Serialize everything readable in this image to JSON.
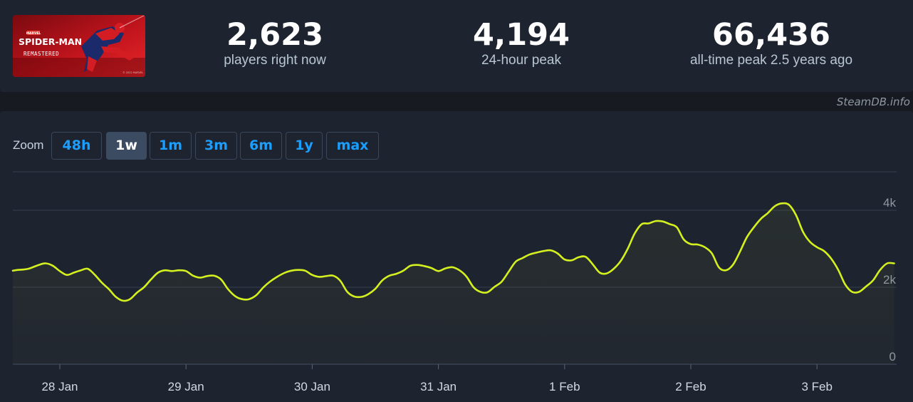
{
  "game": {
    "title_line1": "SPIDER-MAN",
    "title_line2": "REMASTERED",
    "publisher_mark": "MARVEL",
    "copyright": "© 2022 MARVEL"
  },
  "stats": [
    {
      "value": "2,623",
      "label": "players right now"
    },
    {
      "value": "4,194",
      "label": "24-hour peak"
    },
    {
      "value": "66,436",
      "label": "all-time peak 2.5 years ago"
    }
  ],
  "credit": "SteamDB.info",
  "zoom": {
    "label": "Zoom",
    "options": [
      "48h",
      "1w",
      "1m",
      "3m",
      "6m",
      "1y",
      "max"
    ],
    "selected": "1w"
  },
  "colors": {
    "line": "#d4f01f",
    "active_zoom_bg": "#3b4b62",
    "zoom_text": "#1a9fff"
  },
  "chart_data": {
    "type": "area",
    "title": "",
    "xlabel": "",
    "ylabel": "",
    "ylim": [
      0,
      5000
    ],
    "y_ticks": [
      {
        "value": 0,
        "label": "0"
      },
      {
        "value": 2000,
        "label": "2k"
      },
      {
        "value": 4000,
        "label": "4k"
      }
    ],
    "x_ticks": [
      "28 Jan",
      "29 Jan",
      "30 Jan",
      "31 Jan",
      "1 Feb",
      "2 Feb",
      "3 Feb"
    ],
    "x_start": "27 Jan 14:00",
    "x_end": "3 Feb 15:00",
    "grid": true,
    "series": [
      {
        "values": [
          [
            -0.378,
            2430
          ],
          [
            -0.333,
            2450
          ],
          [
            -0.25,
            2480
          ],
          [
            -0.167,
            2580
          ],
          [
            -0.111,
            2620
          ],
          [
            -0.056,
            2560
          ],
          [
            0.0,
            2420
          ],
          [
            0.056,
            2320
          ],
          [
            0.111,
            2380
          ],
          [
            0.167,
            2440
          ],
          [
            0.222,
            2480
          ],
          [
            0.278,
            2320
          ],
          [
            0.333,
            2120
          ],
          [
            0.389,
            1950
          ],
          [
            0.444,
            1750
          ],
          [
            0.5,
            1650
          ],
          [
            0.556,
            1690
          ],
          [
            0.611,
            1860
          ],
          [
            0.667,
            2000
          ],
          [
            0.722,
            2200
          ],
          [
            0.778,
            2380
          ],
          [
            0.833,
            2440
          ],
          [
            0.889,
            2420
          ],
          [
            0.944,
            2440
          ],
          [
            1.0,
            2420
          ],
          [
            1.056,
            2300
          ],
          [
            1.111,
            2250
          ],
          [
            1.167,
            2290
          ],
          [
            1.222,
            2300
          ],
          [
            1.278,
            2200
          ],
          [
            1.333,
            1950
          ],
          [
            1.389,
            1770
          ],
          [
            1.444,
            1690
          ],
          [
            1.5,
            1690
          ],
          [
            1.556,
            1790
          ],
          [
            1.611,
            1990
          ],
          [
            1.667,
            2150
          ],
          [
            1.722,
            2270
          ],
          [
            1.778,
            2370
          ],
          [
            1.833,
            2430
          ],
          [
            1.889,
            2450
          ],
          [
            1.944,
            2430
          ],
          [
            2.0,
            2320
          ],
          [
            2.056,
            2270
          ],
          [
            2.111,
            2290
          ],
          [
            2.167,
            2300
          ],
          [
            2.222,
            2170
          ],
          [
            2.278,
            1880
          ],
          [
            2.333,
            1760
          ],
          [
            2.389,
            1750
          ],
          [
            2.444,
            1820
          ],
          [
            2.5,
            1960
          ],
          [
            2.556,
            2180
          ],
          [
            2.611,
            2300
          ],
          [
            2.667,
            2350
          ],
          [
            2.722,
            2430
          ],
          [
            2.778,
            2560
          ],
          [
            2.833,
            2580
          ],
          [
            2.889,
            2550
          ],
          [
            2.944,
            2500
          ],
          [
            3.0,
            2420
          ],
          [
            3.056,
            2490
          ],
          [
            3.111,
            2520
          ],
          [
            3.167,
            2440
          ],
          [
            3.222,
            2280
          ],
          [
            3.278,
            2000
          ],
          [
            3.333,
            1880
          ],
          [
            3.389,
            1870
          ],
          [
            3.444,
            2010
          ],
          [
            3.5,
            2140
          ],
          [
            3.556,
            2400
          ],
          [
            3.611,
            2660
          ],
          [
            3.667,
            2760
          ],
          [
            3.722,
            2850
          ],
          [
            3.778,
            2900
          ],
          [
            3.833,
            2940
          ],
          [
            3.889,
            2960
          ],
          [
            3.944,
            2880
          ],
          [
            4.0,
            2720
          ],
          [
            4.056,
            2700
          ],
          [
            4.111,
            2780
          ],
          [
            4.167,
            2790
          ],
          [
            4.222,
            2600
          ],
          [
            4.278,
            2380
          ],
          [
            4.333,
            2360
          ],
          [
            4.389,
            2480
          ],
          [
            4.444,
            2680
          ],
          [
            4.5,
            3000
          ],
          [
            4.556,
            3400
          ],
          [
            4.611,
            3640
          ],
          [
            4.667,
            3660
          ],
          [
            4.722,
            3720
          ],
          [
            4.778,
            3710
          ],
          [
            4.833,
            3640
          ],
          [
            4.889,
            3560
          ],
          [
            4.944,
            3240
          ],
          [
            5.0,
            3120
          ],
          [
            5.056,
            3110
          ],
          [
            5.111,
            3040
          ],
          [
            5.167,
            2880
          ],
          [
            5.222,
            2520
          ],
          [
            5.278,
            2440
          ],
          [
            5.333,
            2580
          ],
          [
            5.389,
            2920
          ],
          [
            5.444,
            3300
          ],
          [
            5.5,
            3560
          ],
          [
            5.556,
            3780
          ],
          [
            5.611,
            3930
          ],
          [
            5.667,
            4110
          ],
          [
            5.722,
            4180
          ],
          [
            5.778,
            4140
          ],
          [
            5.833,
            3880
          ],
          [
            5.889,
            3440
          ],
          [
            5.944,
            3180
          ],
          [
            6.0,
            3040
          ],
          [
            6.056,
            2940
          ],
          [
            6.111,
            2750
          ],
          [
            6.167,
            2460
          ],
          [
            6.222,
            2080
          ],
          [
            6.278,
            1880
          ],
          [
            6.333,
            1880
          ],
          [
            6.389,
            2020
          ],
          [
            6.444,
            2180
          ],
          [
            6.5,
            2450
          ],
          [
            6.556,
            2620
          ],
          [
            6.611,
            2620
          ]
        ]
      }
    ]
  }
}
